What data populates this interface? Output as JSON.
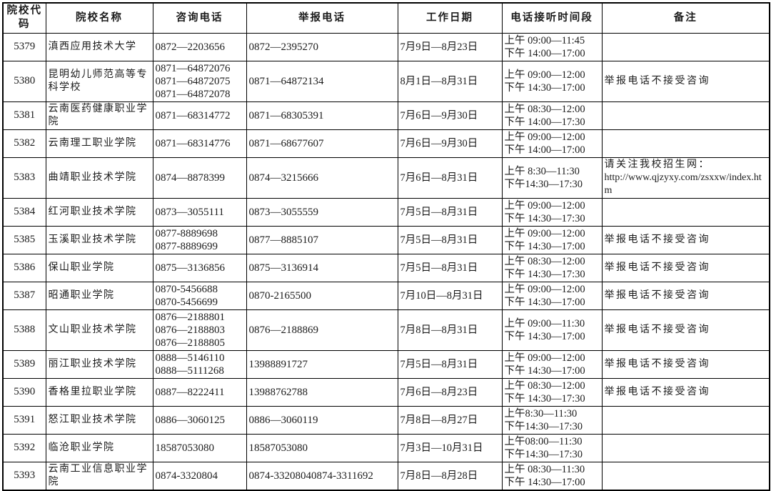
{
  "table": {
    "columns": [
      "院校代码",
      "院校名称",
      "咨询电话",
      "举报电话",
      "工作日期",
      "电话接听时间段",
      "备注"
    ],
    "rows": [
      {
        "code": "5379",
        "name": "滇西应用技术大学",
        "consult": [
          "0872—2203656"
        ],
        "report": [
          "0872—2395270"
        ],
        "dates": "7月9日—8月23日",
        "times": [
          "上午 09:00—11:45",
          "下午 14:00—17:00"
        ],
        "remark": []
      },
      {
        "code": "5380",
        "name": "昆明幼儿师范高等专科学校",
        "consult": [
          "0871—64872076",
          "0871—64872075",
          "0871—64872078"
        ],
        "report": [
          "0871—64872134"
        ],
        "dates": "8月1日—8月31日",
        "times": [
          "上午 09:00—12:00",
          "下午 14:30—17:00"
        ],
        "remark": [
          "举报电话不接受咨询"
        ]
      },
      {
        "code": "5381",
        "name": "云南医药健康职业学院",
        "consult": [
          "0871—68314772"
        ],
        "report": [
          "0871—68305391"
        ],
        "dates": "7月6日—9月30日",
        "times": [
          "上午 08:30—12:00",
          "下午 14:00—17:30"
        ],
        "remark": []
      },
      {
        "code": "5382",
        "name": "云南理工职业学院",
        "consult": [
          "0871—68314776"
        ],
        "report": [
          "0871—68677607"
        ],
        "dates": "7月6日—9月30日",
        "times": [
          "上午 09:00—12:00",
          "下午 14:00—17:00"
        ],
        "remark": []
      },
      {
        "code": "5383",
        "name": "曲靖职业技术学院",
        "consult": [
          "0874—8878399"
        ],
        "report": [
          "0874—3215666"
        ],
        "dates": "7月6日—8月31日",
        "times": [
          "上午 8:30—11:30",
          "下午14:30—17:30"
        ],
        "remark": [
          "请关注我校招生网：",
          "http://www.qjzyxy.com/zsxxw/index.htm"
        ]
      },
      {
        "code": "5384",
        "name": "红河职业技术学院",
        "consult": [
          "0873—3055111"
        ],
        "report": [
          "0873—3055559"
        ],
        "dates": "7月5日—8月31日",
        "times": [
          "上午 09:00—12:00",
          "下午 14:30—17:30"
        ],
        "remark": []
      },
      {
        "code": "5385",
        "name": "玉溪职业技术学院",
        "consult": [
          "0877-8889698",
          "0877-8889699"
        ],
        "report": [
          "0877—8885107"
        ],
        "dates": "7月5日—8月31日",
        "times": [
          "上午 09:00—12:00",
          "下午 14:30—17:00"
        ],
        "remark": [
          "举报电话不接受咨询"
        ]
      },
      {
        "code": "5386",
        "name": "保山职业学院",
        "consult": [
          "0875—3136856"
        ],
        "report": [
          "0875—3136914"
        ],
        "dates": "7月5日—8月31日",
        "times": [
          "上午 08:30—12:00",
          "下午 14:30—17:30"
        ],
        "remark": [
          "举报电话不接受咨询"
        ]
      },
      {
        "code": "5387",
        "name": "昭通职业学院",
        "consult": [
          "0870-5456688",
          "0870-5456699"
        ],
        "report": [
          "0870-2165500"
        ],
        "dates": "7月10日—8月31日",
        "times": [
          "上午 09:00—12:00",
          "下午 14:30—17:00"
        ],
        "remark": [
          "举报电话不接受咨询"
        ]
      },
      {
        "code": "5388",
        "name": "文山职业技术学院",
        "consult": [
          "0876—2188801",
          "0876—2188803",
          "0876—2188805"
        ],
        "report": [
          "0876—2188869"
        ],
        "dates": "7月8日—8月31日",
        "times": [
          "上午 09:00—11:30",
          "下午 14:30—17:00"
        ],
        "remark": [
          "举报电话不接受咨询"
        ]
      },
      {
        "code": "5389",
        "name": "丽江职业技术学院",
        "consult": [
          "0888—5146110",
          "0888—5111268"
        ],
        "report": [
          "13988891727"
        ],
        "dates": "7月5日—8月31日",
        "times": [
          "上午 09:00—12:00",
          "下午 14:30—17:00"
        ],
        "remark": [
          "举报电话不接受咨询"
        ]
      },
      {
        "code": "5390",
        "name": "香格里拉职业学院",
        "consult": [
          "0887—8222411"
        ],
        "report": [
          "13988762788"
        ],
        "dates": "7月6日—8月23日",
        "times": [
          "上午 08:30—12:00",
          "下午 14:30—17:30"
        ],
        "remark": [
          "举报电话不接受咨询"
        ]
      },
      {
        "code": "5391",
        "name": "怒江职业技术学院",
        "consult": [
          "0886—3060125"
        ],
        "report": [
          "0886—3060119"
        ],
        "dates": "7月8日—8月27日",
        "times": [
          "上午8:30—11:30",
          "下午14:30—17:30"
        ],
        "remark": []
      },
      {
        "code": "5392",
        "name": "临沧职业学院",
        "consult": [
          "18587053080"
        ],
        "report": [
          "18587053080"
        ],
        "dates": "7月3日—10月31日",
        "times": [
          "上午08:00—11:30",
          "下午14:30—17:30"
        ],
        "remark": []
      },
      {
        "code": "5393",
        "name": "云南工业信息职业学院",
        "consult": [
          "0874-3320804"
        ],
        "report": [
          "0874-33208040874-3311692"
        ],
        "dates": "7月8日—8月28日",
        "times": [
          "上午 08:30—11:30",
          "下午 14:30—17:00"
        ],
        "remark": []
      }
    ]
  }
}
